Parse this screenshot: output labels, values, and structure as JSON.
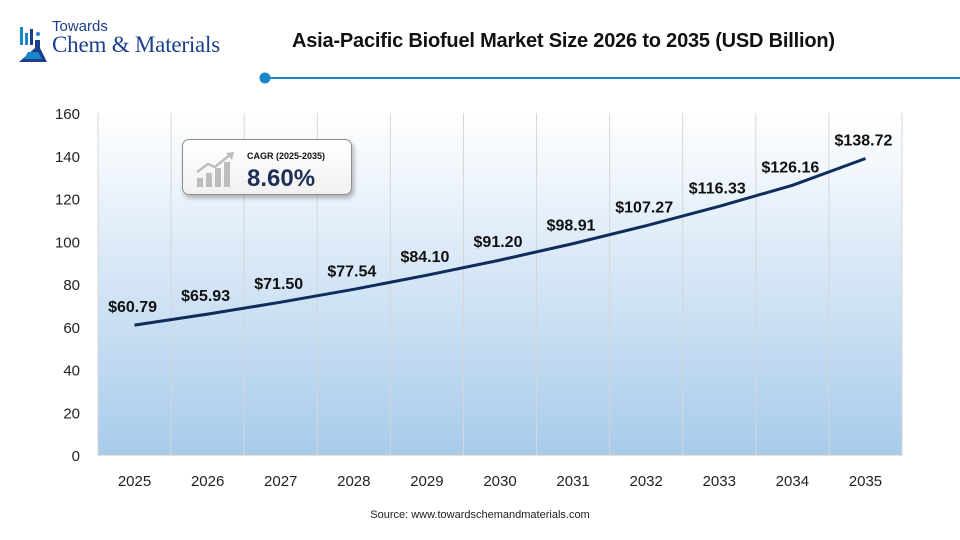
{
  "logo": {
    "line1": "Towards",
    "line2": "Chem & Materials"
  },
  "title": "Asia-Pacific Biofuel Market Size 2026 to 2035 (USD Billion)",
  "cagr": {
    "label": "CAGR (2025-2035)",
    "value": "8.60%"
  },
  "source": "Source: www.towardschemandmaterials.com",
  "colors": {
    "line": "#0f2d5c",
    "accent": "#1a86c9",
    "area_top": "#ffffff",
    "area_bottom": "#a8cbeb"
  },
  "chart_data": {
    "type": "area",
    "title": "Asia-Pacific Biofuel Market Size 2026 to 2035 (USD Billion)",
    "xlabel": "",
    "ylabel": "",
    "categories": [
      "2025",
      "2026",
      "2027",
      "2028",
      "2029",
      "2030",
      "2031",
      "2032",
      "2033",
      "2034",
      "2035"
    ],
    "values": [
      60.79,
      65.93,
      71.5,
      77.54,
      84.1,
      91.2,
      98.91,
      107.27,
      116.33,
      126.16,
      138.72
    ],
    "data_labels": [
      "$60.79",
      "$65.93",
      "$71.50",
      "$77.54",
      "$84.10",
      "$91.20",
      "$98.91",
      "$107.27",
      "$116.33",
      "$126.16",
      "$138.72"
    ],
    "ylim": [
      0,
      160
    ],
    "yticks": [
      0,
      20,
      40,
      60,
      80,
      100,
      120,
      140,
      160
    ],
    "grid": "vertical",
    "legend": "none"
  }
}
